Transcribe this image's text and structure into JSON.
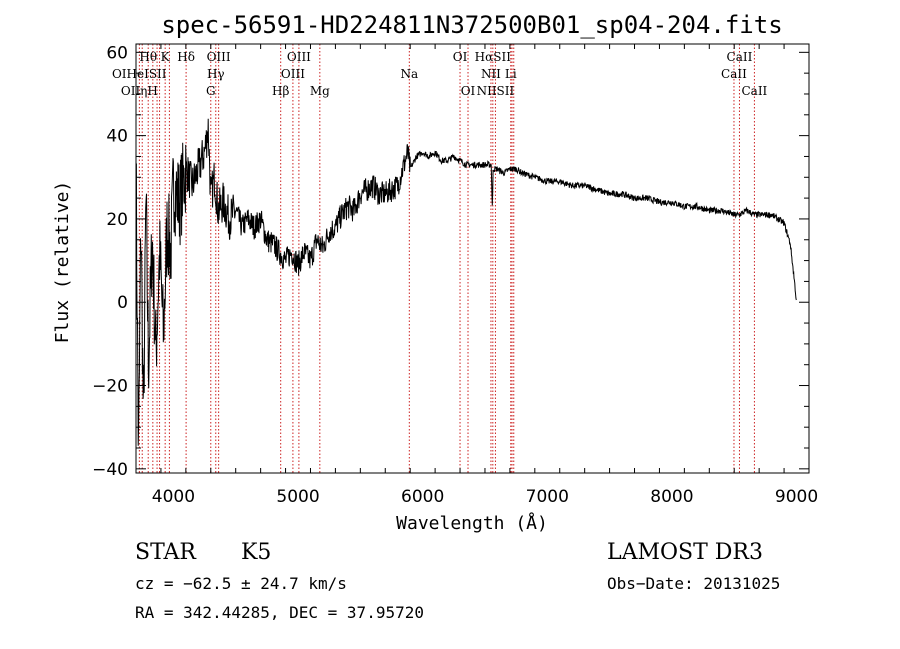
{
  "chart_data": {
    "type": "line",
    "title": "spec-56591-HD224811N372500B01_sp04-204.fits",
    "xlabel": "Wavelength (Å)",
    "ylabel": "Flux (relative)",
    "xlim": [
      3700,
      9100
    ],
    "ylim": [
      -41,
      62
    ],
    "xticks": [
      4000,
      5000,
      6000,
      7000,
      8000,
      9000
    ],
    "yticks": [
      -40,
      -20,
      0,
      20,
      40,
      60
    ],
    "series": [
      {
        "name": "spectrum",
        "x": [
          3700,
          3720,
          3740,
          3760,
          3780,
          3800,
          3830,
          3860,
          3890,
          3920,
          3950,
          3980,
          4000,
          4050,
          4100,
          4150,
          4200,
          4250,
          4280,
          4300,
          4330,
          4360,
          4400,
          4450,
          4500,
          4550,
          4600,
          4650,
          4700,
          4750,
          4800,
          4850,
          4900,
          4950,
          5000,
          5050,
          5100,
          5150,
          5200,
          5250,
          5300,
          5350,
          5400,
          5450,
          5500,
          5550,
          5600,
          5650,
          5700,
          5750,
          5800,
          5850,
          5880,
          5900,
          5950,
          6000,
          6050,
          6100,
          6150,
          6200,
          6250,
          6300,
          6350,
          6400,
          6450,
          6500,
          6550,
          6560,
          6565,
          6570,
          6600,
          6650,
          6700,
          6750,
          6800,
          6900,
          7000,
          7100,
          7200,
          7300,
          7400,
          7500,
          7600,
          7700,
          7800,
          7900,
          8000,
          8100,
          8200,
          8300,
          8400,
          8500,
          8540,
          8600,
          8662,
          8700,
          8750,
          8800,
          8850,
          8900,
          8950,
          8980,
          9000
        ],
        "y": [
          35,
          -38,
          20,
          -30,
          25,
          -15,
          15,
          -12,
          12,
          -8,
          18,
          12,
          28,
          24,
          32,
          28,
          32,
          36,
          42,
          25,
          30,
          22,
          24,
          20,
          22,
          18,
          20,
          18,
          20,
          15,
          14,
          12,
          10,
          12,
          9,
          12,
          10,
          15,
          13,
          17,
          18,
          21,
          23,
          22,
          26,
          27,
          28,
          26,
          26,
          27,
          28,
          33,
          36,
          32,
          35,
          36,
          35,
          36,
          34,
          34,
          35,
          34,
          33,
          33,
          33,
          33,
          33,
          22,
          32,
          32,
          32,
          31,
          32,
          32,
          31,
          30,
          29,
          29,
          28,
          28,
          27,
          26,
          26,
          25,
          25,
          24,
          24,
          23,
          23,
          22,
          22,
          21,
          21,
          22,
          21,
          21,
          21,
          21,
          20,
          19,
          14,
          6,
          0
        ]
      }
    ],
    "line_labels": [
      {
        "row": 1,
        "text": "Hθ",
        "lambda": 3798
      },
      {
        "row": 1,
        "text": "K",
        "lambda": 3934
      },
      {
        "row": 1,
        "text": "Hδ",
        "lambda": 4102
      },
      {
        "row": 1,
        "text": "OIII",
        "lambda": 4363
      },
      {
        "row": 1,
        "text": "OIII",
        "lambda": 5007
      },
      {
        "row": 1,
        "text": "OI",
        "lambda": 6300
      },
      {
        "row": 1,
        "text": "HαSII",
        "lambda": 6563
      },
      {
        "row": 1,
        "text": "CaII",
        "lambda": 8542
      },
      {
        "row": 2,
        "text": "OIHeISII",
        "lambda": 3726
      },
      {
        "row": 2,
        "text": "Hγ",
        "lambda": 4340
      },
      {
        "row": 2,
        "text": "OIII",
        "lambda": 4959
      },
      {
        "row": 2,
        "text": "Na",
        "lambda": 5893
      },
      {
        "row": 2,
        "text": "NII",
        "lambda": 6548
      },
      {
        "row": 2,
        "text": "Li",
        "lambda": 6707
      },
      {
        "row": 2,
        "text": "CaII",
        "lambda": 8498
      },
      {
        "row": 3,
        "text": "OIIηH",
        "lambda": 3727
      },
      {
        "row": 3,
        "text": "G",
        "lambda": 4300
      },
      {
        "row": 3,
        "text": "Hβ",
        "lambda": 4861
      },
      {
        "row": 3,
        "text": "Mg",
        "lambda": 5175
      },
      {
        "row": 3,
        "text": "OI",
        "lambda": 6364
      },
      {
        "row": 3,
        "text": "NIISII",
        "lambda": 6584
      },
      {
        "row": 3,
        "text": "CaII",
        "lambda": 8662
      }
    ],
    "line_markers": [
      3727,
      3750,
      3798,
      3835,
      3869,
      3889,
      3934,
      3968,
      4102,
      4300,
      4340,
      4363,
      4861,
      4959,
      5007,
      5175,
      5893,
      6300,
      6364,
      6548,
      6563,
      6584,
      6707,
      6717,
      6731,
      8498,
      8542,
      8662
    ]
  },
  "info": {
    "object_class": "STAR",
    "subclass": "K5",
    "survey": "LAMOST DR3",
    "cz": "cz = −62.5 ± 24.7 km/s",
    "obs_date": "Obs−Date: 20131025",
    "coords": "RA = 342.44285, DEC =  37.95720"
  }
}
